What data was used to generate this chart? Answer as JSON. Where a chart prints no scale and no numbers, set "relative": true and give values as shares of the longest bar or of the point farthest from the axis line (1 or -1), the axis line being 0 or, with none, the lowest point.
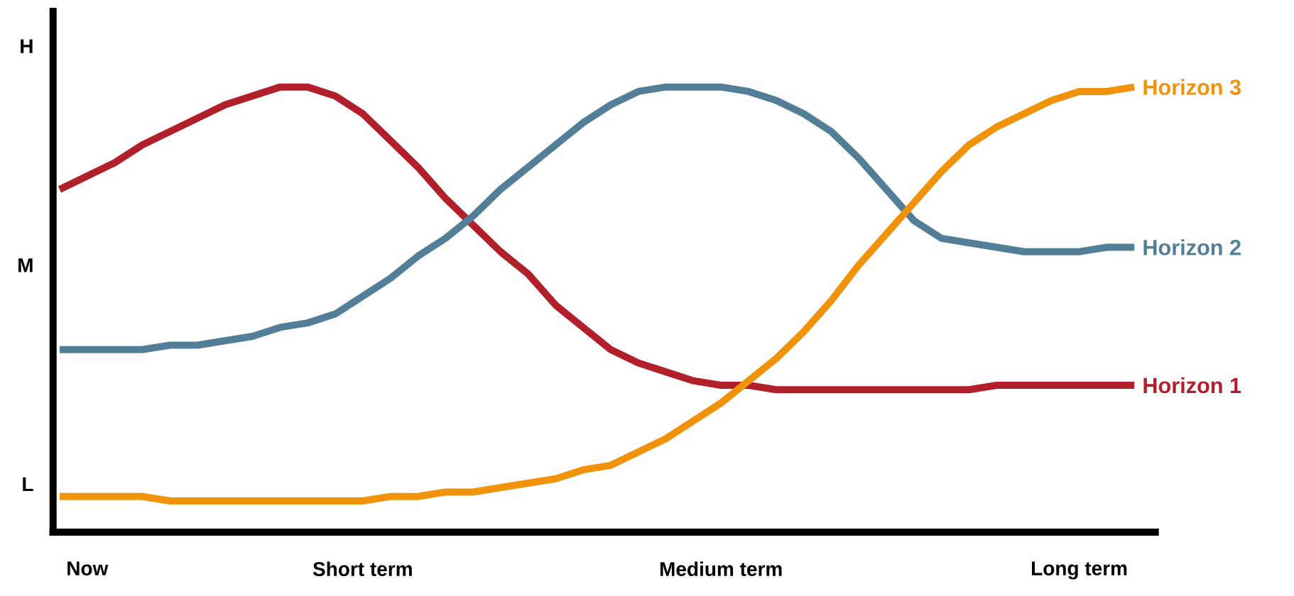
{
  "chart_data": {
    "type": "line",
    "relative": true,
    "legend": false,
    "line_style": "solid",
    "categories": [
      null,
      "Now",
      null,
      null,
      null,
      null,
      null,
      null,
      null,
      null,
      null,
      "Short term",
      null,
      null,
      null,
      null,
      null,
      null,
      null,
      null,
      null,
      null,
      null,
      null,
      "Medium term",
      null,
      null,
      null,
      null,
      null,
      null,
      null,
      null,
      null,
      null,
      null,
      null,
      "Long term",
      null,
      null
    ],
    "annotations": [
      "L",
      "M",
      "H"
    ],
    "series": [
      {
        "name": "Horizon 1",
        "color": "#b01f2a",
        "values": [
          0.77,
          0.8,
          0.83,
          0.87,
          0.9,
          0.93,
          0.96,
          0.98,
          1.0,
          1.0,
          0.98,
          0.94,
          0.88,
          0.82,
          0.75,
          0.69,
          0.63,
          0.58,
          0.51,
          0.46,
          0.41,
          0.38,
          0.36,
          0.34,
          0.33,
          0.33,
          0.32,
          0.32,
          0.32,
          0.32,
          0.32,
          0.32,
          0.32,
          0.32,
          0.33,
          0.33,
          0.33,
          0.33,
          0.33,
          0.33
        ]
      },
      {
        "name": "Horizon 2",
        "color": "#527f97",
        "values": [
          0.41,
          0.41,
          0.41,
          0.41,
          0.42,
          0.42,
          0.43,
          0.44,
          0.46,
          0.47,
          0.49,
          0.53,
          0.57,
          0.62,
          0.66,
          0.71,
          0.77,
          0.82,
          0.87,
          0.92,
          0.96,
          0.99,
          1.0,
          1.0,
          1.0,
          0.99,
          0.97,
          0.94,
          0.9,
          0.84,
          0.77,
          0.7,
          0.66,
          0.65,
          0.64,
          0.63,
          0.63,
          0.63,
          0.64,
          0.64
        ]
      },
      {
        "name": "Horizon 3",
        "color": "#f0920a",
        "values": [
          0.08,
          0.08,
          0.08,
          0.08,
          0.07,
          0.07,
          0.07,
          0.07,
          0.07,
          0.07,
          0.07,
          0.07,
          0.08,
          0.08,
          0.09,
          0.09,
          0.1,
          0.11,
          0.12,
          0.14,
          0.15,
          0.18,
          0.21,
          0.25,
          0.29,
          0.34,
          0.39,
          0.45,
          0.52,
          0.6,
          0.67,
          0.74,
          0.81,
          0.87,
          0.91,
          0.94,
          0.97,
          0.99,
          0.99,
          1.0
        ]
      }
    ]
  }
}
